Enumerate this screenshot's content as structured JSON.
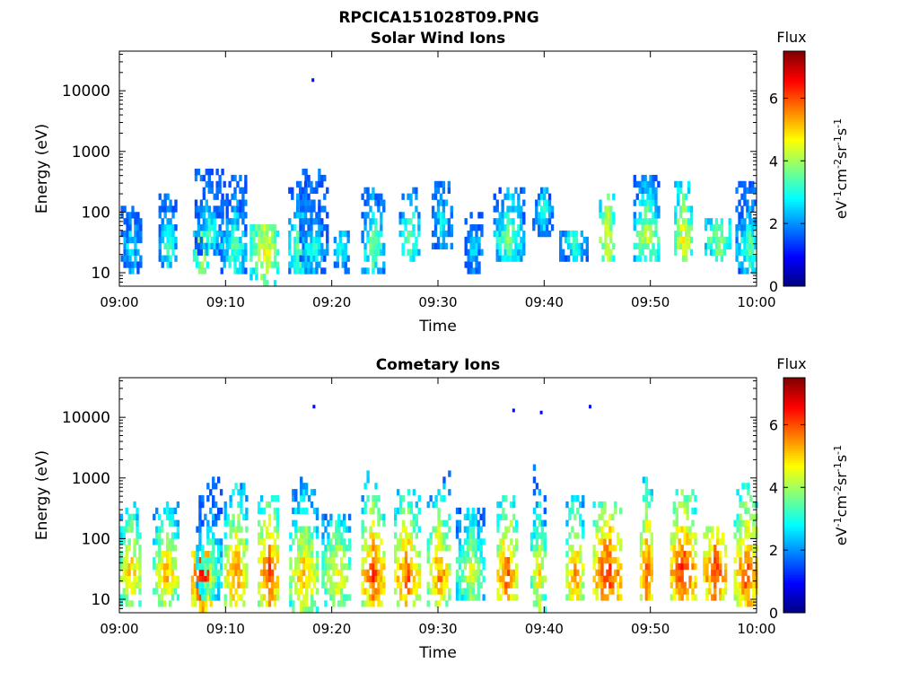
{
  "figure": {
    "title": "RPCICA151028T09.PNG"
  },
  "chart_data": [
    {
      "type": "heatmap",
      "title": "Solar Wind Ions",
      "xlabel": "Time",
      "ylabel": "Energy (eV)",
      "x_ticks": [
        "09:00",
        "09:10",
        "09:20",
        "09:30",
        "09:40",
        "09:50",
        "10:00"
      ],
      "x_range_minutes": [
        0,
        60
      ],
      "y_scale": "log",
      "y_ticks": [
        10,
        100,
        1000,
        10000
      ],
      "y_tick_labels": [
        "10",
        "100",
        "1000",
        "10000"
      ],
      "y_range": [
        6,
        45000
      ],
      "colorbar": {
        "title": "Flux",
        "label": "eV-1cm-2sr-1s-1",
        "ticks": [
          "0",
          "2",
          "4",
          "6"
        ],
        "range": [
          0,
          7.5
        ],
        "colormap": "jet"
      },
      "clusters": [
        {
          "t": 1.0,
          "e_min": 12,
          "e_max": 110,
          "peak": 2.9
        },
        {
          "t": 4.5,
          "e_min": 13,
          "e_max": 170,
          "peak": 3.4
        },
        {
          "t": 7.6,
          "e_min": 12,
          "e_max": 40,
          "peak": 4.7
        },
        {
          "t": 8.4,
          "e_min": 20,
          "e_max": 480,
          "peak": 3.2
        },
        {
          "t": 10.7,
          "e_min": 12,
          "e_max": 330,
          "peak": 3.6
        },
        {
          "t": 13.6,
          "e_min": 7,
          "e_max": 55,
          "peak": 4.8
        },
        {
          "t": 16.8,
          "e_min": 12,
          "e_max": 280,
          "peak": 3.9
        },
        {
          "t": 18.2,
          "e_min": 12,
          "e_max": 500,
          "peak": 3.2
        },
        {
          "t": 20.8,
          "e_min": 12,
          "e_max": 45,
          "peak": 3.3
        },
        {
          "t": 23.8,
          "e_min": 12,
          "e_max": 210,
          "peak": 3.8
        },
        {
          "t": 27.2,
          "e_min": 17,
          "e_max": 230,
          "peak": 4.0
        },
        {
          "t": 30.3,
          "e_min": 30,
          "e_max": 280,
          "peak": 3.0
        },
        {
          "t": 33.3,
          "e_min": 12,
          "e_max": 90,
          "peak": 2.9
        },
        {
          "t": 36.6,
          "e_min": 17,
          "e_max": 210,
          "peak": 3.8
        },
        {
          "t": 39.8,
          "e_min": 45,
          "e_max": 220,
          "peak": 3.1
        },
        {
          "t": 42.7,
          "e_min": 17,
          "e_max": 40,
          "peak": 3.3
        },
        {
          "t": 45.8,
          "e_min": 17,
          "e_max": 180,
          "peak": 4.9
        },
        {
          "t": 49.6,
          "e_min": 17,
          "e_max": 330,
          "peak": 4.3
        },
        {
          "t": 53.0,
          "e_min": 17,
          "e_max": 310,
          "peak": 4.9
        },
        {
          "t": 56.3,
          "e_min": 17,
          "e_max": 75,
          "peak": 4.1
        },
        {
          "t": 59.2,
          "e_min": 12,
          "e_max": 270,
          "peak": 3.6
        }
      ],
      "isolated_points": [
        {
          "t": 18.1,
          "e": 15000,
          "value": 1.0
        }
      ]
    },
    {
      "type": "heatmap",
      "title": "Cometary Ions",
      "xlabel": "Time",
      "ylabel": "Energy (eV)",
      "x_ticks": [
        "09:00",
        "09:10",
        "09:20",
        "09:30",
        "09:40",
        "09:50",
        "10:00"
      ],
      "x_range_minutes": [
        0,
        60
      ],
      "y_scale": "log",
      "y_ticks": [
        10,
        100,
        1000,
        10000
      ],
      "y_tick_labels": [
        "10",
        "100",
        "1000",
        "10000"
      ],
      "y_range": [
        6,
        45000
      ],
      "colorbar": {
        "title": "Flux",
        "label": "eV-1cm-2sr-1s-1",
        "ticks": [
          "0",
          "2",
          "4",
          "6"
        ],
        "range": [
          0,
          7.5
        ],
        "colormap": "jet"
      },
      "clusters": [
        {
          "t": 1.0,
          "e_min": 8,
          "e_max": 350,
          "peak": 5.3
        },
        {
          "t": 4.3,
          "e_min": 8,
          "e_max": 350,
          "peak": 5.3
        },
        {
          "t": 7.7,
          "e_min": 6,
          "e_max": 60,
          "peak": 6.6
        },
        {
          "t": 8.4,
          "e_min": 12,
          "e_max": 900,
          "peak": 4.2
        },
        {
          "t": 10.9,
          "e_min": 8,
          "e_max": 700,
          "peak": 5.8
        },
        {
          "t": 14.0,
          "e_min": 8,
          "e_max": 500,
          "peak": 6.2
        },
        {
          "t": 17.3,
          "e_min": 7,
          "e_max": 850,
          "peak": 5.4
        },
        {
          "t": 20.4,
          "e_min": 8,
          "e_max": 250,
          "peak": 5.0
        },
        {
          "t": 23.8,
          "e_min": 8,
          "e_max": 1200,
          "peak": 6.2
        },
        {
          "t": 27.0,
          "e_min": 8,
          "e_max": 650,
          "peak": 6.0
        },
        {
          "t": 30.0,
          "e_min": 8,
          "e_max": 1300,
          "peak": 5.7
        },
        {
          "t": 33.0,
          "e_min": 12,
          "e_max": 280,
          "peak": 4.6
        },
        {
          "t": 36.4,
          "e_min": 10,
          "e_max": 450,
          "peak": 6.1
        },
        {
          "t": 39.4,
          "e_min": 7,
          "e_max": 1800,
          "peak": 5.1
        },
        {
          "t": 42.8,
          "e_min": 10,
          "e_max": 450,
          "peak": 5.7
        },
        {
          "t": 45.9,
          "e_min": 12,
          "e_max": 350,
          "peak": 6.4
        },
        {
          "t": 49.6,
          "e_min": 12,
          "e_max": 950,
          "peak": 6.2
        },
        {
          "t": 53.0,
          "e_min": 12,
          "e_max": 600,
          "peak": 6.5
        },
        {
          "t": 56.0,
          "e_min": 12,
          "e_max": 160,
          "peak": 6.3
        },
        {
          "t": 59.0,
          "e_min": 8,
          "e_max": 750,
          "peak": 6.2
        }
      ],
      "isolated_points": [
        {
          "t": 18.2,
          "e": 15000,
          "value": 1.0
        },
        {
          "t": 37.0,
          "e": 13000,
          "value": 1.0
        },
        {
          "t": 39.6,
          "e": 12000,
          "value": 1.0
        },
        {
          "t": 44.2,
          "e": 15000,
          "value": 1.0
        }
      ]
    }
  ]
}
